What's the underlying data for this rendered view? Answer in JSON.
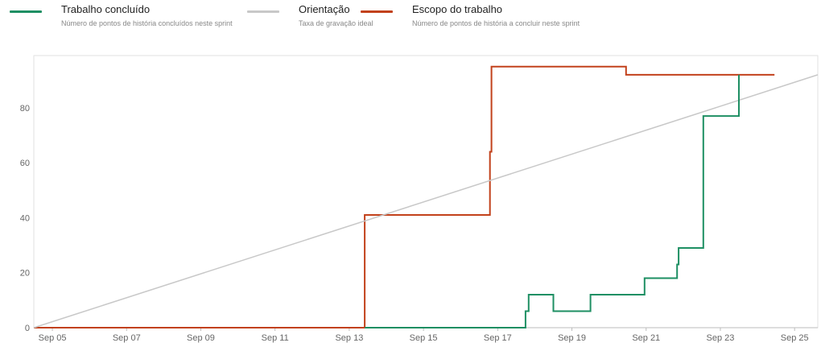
{
  "legend": [
    {
      "title": "Trabalho concluído",
      "subtitle": "Número de pontos de história concluídos neste sprint",
      "color": "#1e8f63"
    },
    {
      "title": "Orientação",
      "subtitle": "Taxa de gravação ideal",
      "color": "#c8c8c8"
    },
    {
      "title": "Escopo do trabalho",
      "subtitle": "Número de pontos de história a concluir neste sprint",
      "color": "#c2411b"
    }
  ],
  "chart_data": {
    "type": "line",
    "title": "",
    "xlabel": "",
    "ylabel": "",
    "x_unit": "date",
    "xlim": [
      "2023-09-04 12:00",
      "2023-09-25 15:00"
    ],
    "ylim": [
      0,
      99
    ],
    "x_ticks": [
      "Sep 05",
      "Sep 07",
      "Sep 09",
      "Sep 11",
      "Sep 13",
      "Sep 15",
      "Sep 17",
      "Sep 19",
      "Sep 21",
      "Sep 23",
      "Sep 25"
    ],
    "x_tick_dates": [
      "2023-09-05",
      "2023-09-07",
      "2023-09-09",
      "2023-09-11",
      "2023-09-13",
      "2023-09-15",
      "2023-09-17",
      "2023-09-19",
      "2023-09-21",
      "2023-09-23",
      "2023-09-25"
    ],
    "y_ticks": [
      0,
      20,
      40,
      60,
      80
    ],
    "grid": false,
    "legend_position": "top-left",
    "series": [
      {
        "name": "Escopo do trabalho",
        "color": "#c2411b",
        "step": true,
        "points": [
          [
            "2023-09-04 12:00",
            0
          ],
          [
            "2023-09-13 09:00",
            0
          ],
          [
            "2023-09-13 10:00",
            41
          ],
          [
            "2023-09-16 19:00",
            41
          ],
          [
            "2023-09-16 19:00",
            64
          ],
          [
            "2023-09-16 20:00",
            76
          ],
          [
            "2023-09-16 20:00",
            95
          ],
          [
            "2023-09-20 11:00",
            95
          ],
          [
            "2023-09-20 11:00",
            92
          ],
          [
            "2023-09-24 11:00",
            92
          ]
        ]
      },
      {
        "name": "Orientação",
        "color": "#c8c8c8",
        "step": false,
        "points": [
          [
            "2023-09-04 12:00",
            0
          ],
          [
            "2023-09-25 15:00",
            92
          ]
        ]
      },
      {
        "name": "Trabalho concluído",
        "color": "#1e8f63",
        "step": true,
        "points": [
          [
            "2023-09-13 10:00",
            0
          ],
          [
            "2023-09-17 18:00",
            0
          ],
          [
            "2023-09-17 18:00",
            6
          ],
          [
            "2023-09-17 20:00",
            6
          ],
          [
            "2023-09-17 20:00",
            12
          ],
          [
            "2023-09-18 12:00",
            12
          ],
          [
            "2023-09-18 12:00",
            6
          ],
          [
            "2023-09-19 12:00",
            6
          ],
          [
            "2023-09-19 12:00",
            12
          ],
          [
            "2023-09-20 23:00",
            12
          ],
          [
            "2023-09-20 23:00",
            18
          ],
          [
            "2023-09-21 20:00",
            18
          ],
          [
            "2023-09-21 20:00",
            23
          ],
          [
            "2023-09-21 21:00",
            29
          ],
          [
            "2023-09-22 13:00",
            29
          ],
          [
            "2023-09-22 13:00",
            77
          ],
          [
            "2023-09-23 12:00",
            77
          ],
          [
            "2023-09-23 12:00",
            92
          ]
        ]
      }
    ]
  }
}
